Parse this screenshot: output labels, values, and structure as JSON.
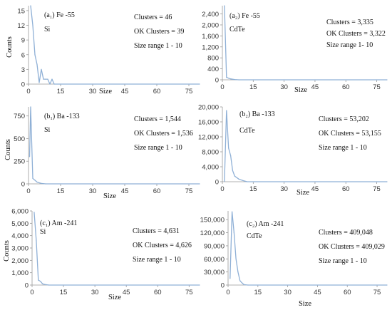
{
  "colors": {
    "series": "#8fb0d6",
    "axis": "#999999",
    "text": "#111111"
  },
  "chart_data": [
    {
      "type": "line",
      "panel_label": "(a₁) Fe -55",
      "material": "Si",
      "annotations": [
        "Clusters = 46",
        "OK Clusters = 39",
        "Size range 1 - 10"
      ],
      "xlabel": "Size",
      "ylabel": "Counts",
      "xlim": [
        0,
        80
      ],
      "ylim": [
        0,
        16
      ],
      "xticks": [
        0,
        15,
        30,
        45,
        60,
        75
      ],
      "xtick_labels": [
        "0",
        "15",
        "30",
        "45",
        "60",
        "75"
      ],
      "yticks": [
        0,
        3,
        6,
        9,
        12,
        15
      ],
      "ytick_labels": [
        "0",
        "3",
        "6",
        "9",
        "12",
        "15"
      ],
      "x": [
        1,
        2,
        3,
        4,
        5,
        6,
        7,
        8,
        9,
        10,
        11,
        12,
        80
      ],
      "y": [
        16,
        12,
        6,
        4,
        0.3,
        3,
        1,
        1,
        1,
        0,
        1,
        0,
        0
      ]
    },
    {
      "type": "line",
      "panel_label": "(a₂) Fe -55",
      "material": "CdTe",
      "annotations": [
        "Clusters = 3,335",
        "OK Clusters = 3,322",
        "Size range 1- 10"
      ],
      "xlabel": "Size",
      "ylabel": "",
      "xlim": [
        0,
        80
      ],
      "ylim": [
        0,
        2700
      ],
      "xticks": [
        0,
        15,
        30,
        45,
        60,
        75
      ],
      "xtick_labels": [
        "0",
        "15",
        "30",
        "45",
        "60",
        "75"
      ],
      "yticks": [
        0,
        400,
        800,
        1200,
        1600,
        2000,
        2400
      ],
      "ytick_labels": [
        "0",
        "400",
        "800",
        "1,200",
        "1,600",
        "2,000",
        "2,400"
      ],
      "x": [
        1,
        2,
        3,
        4,
        5,
        6,
        8,
        80
      ],
      "y": [
        2700,
        90,
        60,
        35,
        20,
        10,
        0,
        0
      ]
    },
    {
      "type": "line",
      "panel_label": "(b₁) Ba -133",
      "material": "Si",
      "annotations": [
        "Clusters = 1,544",
        "OK Clusters = 1,536",
        "Size range 1 - 10"
      ],
      "xlabel": "Size",
      "ylabel": "Counts",
      "xlim": [
        0,
        80
      ],
      "ylim": [
        0,
        850
      ],
      "xticks": [
        0,
        15,
        30,
        45,
        60,
        75
      ],
      "xtick_labels": [
        "0",
        "15",
        "30",
        "45",
        "60",
        "75"
      ],
      "yticks": [
        0,
        250,
        500,
        750
      ],
      "ytick_labels": [
        "0",
        "250",
        "500",
        "750"
      ],
      "x": [
        0.5,
        1,
        2,
        3,
        4,
        5,
        6,
        8,
        80
      ],
      "y": [
        300,
        850,
        60,
        40,
        20,
        12,
        5,
        0,
        0
      ]
    },
    {
      "type": "line",
      "panel_label": "(b₂) Ba -133",
      "material": "CdTe",
      "annotations": [
        "Clusters = 53,202",
        "OK Clusters = 53,155",
        "Size range 1 - 10"
      ],
      "xlabel": "Size",
      "ylabel": "",
      "xlim": [
        0,
        80
      ],
      "ylim": [
        0,
        20000
      ],
      "xticks": [
        0,
        15,
        30,
        45,
        60,
        75
      ],
      "xtick_labels": [
        "0",
        "15",
        "30",
        "45",
        "60",
        "75"
      ],
      "yticks": [
        0,
        4000,
        8000,
        12000,
        16000,
        20000
      ],
      "ytick_labels": [
        "0",
        "4,000",
        "8,000",
        "12,000",
        "16,000",
        "20,000"
      ],
      "x": [
        1,
        2,
        3,
        4,
        5,
        6,
        8,
        10,
        12,
        80
      ],
      "y": [
        100,
        19000,
        9000,
        7000,
        3000,
        1500,
        700,
        300,
        0,
        0
      ]
    },
    {
      "type": "line",
      "panel_label": "(c₁) Am -241",
      "material": "Si",
      "annotations": [
        "Clusters = 4,631",
        "OK Clusters = 4,626",
        "Size range 1 - 10"
      ],
      "xlabel": "Size",
      "ylabel": "Counts",
      "xlim": [
        0,
        80
      ],
      "ylim": [
        0,
        6000
      ],
      "xticks": [
        0,
        15,
        30,
        45,
        60,
        75
      ],
      "xtick_labels": [
        "0",
        "15",
        "30",
        "45",
        "60",
        "75"
      ],
      "yticks": [
        0,
        1000,
        2000,
        3000,
        4000,
        5000,
        6000
      ],
      "ytick_labels": [
        "0",
        "1,000",
        "2,000",
        "3,000",
        "4,000",
        "5,000",
        "6,000"
      ],
      "x": [
        1,
        2,
        3,
        4,
        5,
        6,
        8,
        80
      ],
      "y": [
        5900,
        3600,
        400,
        300,
        100,
        50,
        0,
        0
      ]
    },
    {
      "type": "line",
      "panel_label": "(c₂) Am -241",
      "material": "CdTe",
      "annotations": [
        "Clusters = 409,048",
        "OK Clusters = 409,029",
        "Size range 1 - 10"
      ],
      "xlabel": "Size",
      "ylabel": "",
      "xlim": [
        0,
        80
      ],
      "ylim": [
        0,
        170000
      ],
      "xticks": [
        0,
        15,
        30,
        45,
        60,
        75
      ],
      "xtick_labels": [
        "0",
        "15",
        "30",
        "45",
        "60",
        "75"
      ],
      "yticks": [
        0,
        30000,
        60000,
        90000,
        120000,
        150000
      ],
      "ytick_labels": [
        "0",
        "30,000",
        "60,000",
        "90,000",
        "120,000",
        "150,000"
      ],
      "x": [
        1,
        2,
        3,
        4,
        5,
        6,
        7,
        8,
        10,
        80
      ],
      "y": [
        15000,
        168000,
        120000,
        60000,
        30000,
        10000,
        5000,
        1000,
        0,
        0
      ]
    }
  ]
}
